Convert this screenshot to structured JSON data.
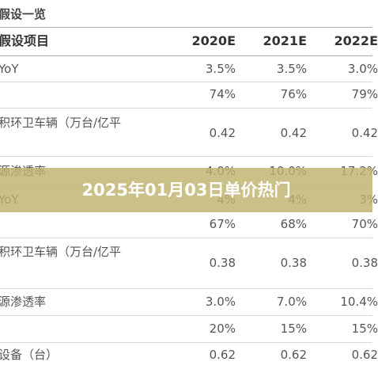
{
  "title": "假设一览",
  "header": [
    "假设项目",
    "2020E",
    "2021E",
    "2022E"
  ],
  "rows": [
    {
      "label": "YoY",
      "values": [
        "3.5%",
        "3.5%",
        "3.0%"
      ]
    },
    {
      "values": [
        "74%",
        "76%",
        "79%"
      ]
    },
    {
      "label": "积环卫车辆（万台/亿平",
      "values": [
        "0.42",
        "0.42",
        "0.42"
      ]
    },
    {
      "label": "源渗透率",
      "values": [
        "4.0%",
        "10.0%",
        "17.2%"
      ]
    },
    {
      "label": "YoY",
      "values": [
        "4%",
        "4%",
        "3%"
      ]
    },
    {
      "values": [
        "67%",
        "68%",
        "70%"
      ]
    },
    {
      "label": "积环卫车辆（万台/亿平",
      "values": [
        "0.38",
        "0.38",
        "0.38"
      ]
    },
    {
      "label": "源渗透率",
      "values": [
        "3.0%",
        "7.0%",
        "10.4%"
      ]
    },
    {
      "values": [
        "20%",
        "15%",
        "15%"
      ]
    },
    {
      "label": "设备（台）",
      "values": [
        "0.62",
        "0.62",
        "0.62"
      ]
    }
  ],
  "banner": "2025年01月03日单价热门"
}
